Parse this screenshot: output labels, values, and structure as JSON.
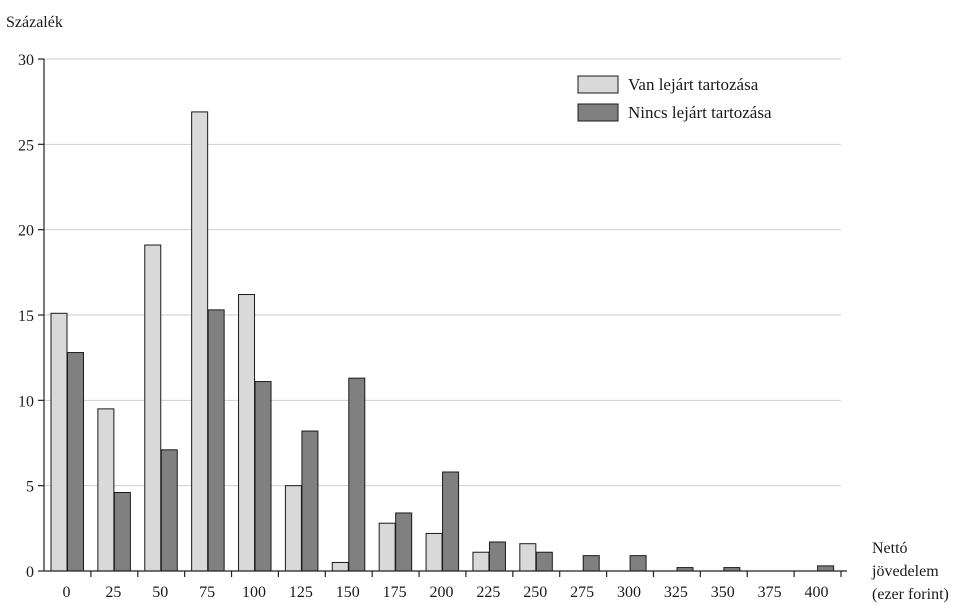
{
  "chart_data": {
    "type": "bar",
    "title": "",
    "ylabel": "Százalék",
    "xlabel": [
      "Nettó",
      "jövedelem",
      "(ezer forint)"
    ],
    "ylim": [
      0,
      30
    ],
    "yticks": [
      0,
      5,
      10,
      15,
      20,
      25,
      30
    ],
    "grid": true,
    "legend_position": "top-right",
    "categories": [
      "0",
      "25",
      "50",
      "75",
      "100",
      "125",
      "150",
      "175",
      "200",
      "225",
      "250",
      "275",
      "300",
      "325",
      "350",
      "375",
      "400"
    ],
    "series": [
      {
        "name": "Van lejárt tartozása",
        "color": "#d9d9d9",
        "values": [
          15.1,
          9.5,
          19.1,
          26.9,
          16.2,
          5.0,
          0.5,
          2.8,
          2.2,
          1.1,
          1.6,
          0,
          0,
          0,
          0,
          0,
          0
        ]
      },
      {
        "name": "Nincs lejárt tartozása",
        "color": "#808080",
        "values": [
          12.8,
          4.6,
          7.1,
          15.3,
          11.1,
          8.2,
          11.3,
          3.4,
          5.8,
          1.7,
          1.1,
          0.9,
          0.9,
          0.2,
          0.2,
          0,
          0.3
        ]
      }
    ]
  }
}
